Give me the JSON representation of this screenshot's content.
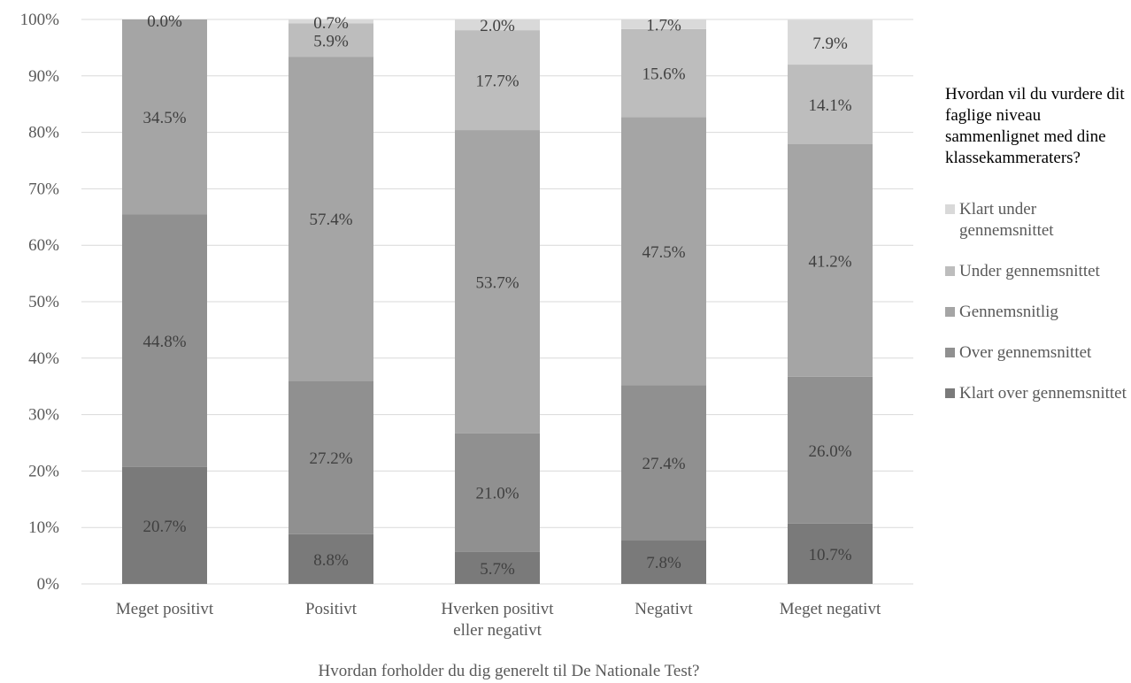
{
  "chart_data": {
    "type": "bar",
    "stacked": true,
    "categories": [
      "Meget positivt",
      "Positivt",
      "Hverken positivt eller negativt",
      "Negativt",
      "Meget negativt"
    ],
    "xlabel": "Hvordan forholder du dig generelt til De Nationale Test?",
    "ylabel": "",
    "ylim": [
      0,
      100
    ],
    "yticks": [
      "0%",
      "10%",
      "20%",
      "30%",
      "40%",
      "50%",
      "60%",
      "70%",
      "80%",
      "90%",
      "100%"
    ],
    "grid": true,
    "legend_title": "Hvordan vil du vurdere dit faglige niveau sammenlignet med dine klassekammeraters?",
    "legend_position": "right",
    "series": [
      {
        "name": "Klart over gennemsnittet",
        "color": "#7a7a7a",
        "values": [
          20.7,
          8.8,
          5.7,
          7.8,
          10.7
        ],
        "labels": [
          "20.7%",
          "8.8%",
          "5.7%",
          "7.8%",
          "10.7%"
        ]
      },
      {
        "name": "Over gennemsnittet",
        "color": "#909090",
        "values": [
          44.8,
          27.2,
          21.0,
          27.4,
          26.0
        ],
        "labels": [
          "44.8%",
          "27.2%",
          "21.0%",
          "27.4%",
          "26.0%"
        ]
      },
      {
        "name": "Gennemsnitlig",
        "color": "#a5a5a5",
        "values": [
          34.5,
          57.4,
          53.7,
          47.5,
          41.2
        ],
        "labels": [
          "34.5%",
          "57.4%",
          "53.7%",
          "47.5%",
          "41.2%"
        ]
      },
      {
        "name": "Under gennemsnittet",
        "color": "#bdbdbd",
        "values": [
          0.0,
          5.9,
          17.7,
          15.6,
          14.1
        ],
        "labels": [
          "0.0%",
          "5.9%",
          "17.7%",
          "15.6%",
          "14.1%"
        ]
      },
      {
        "name": "Klart under gennemsnittet",
        "color": "#d9d9d9",
        "values": [
          0.0,
          0.7,
          2.0,
          1.7,
          7.9
        ],
        "labels": [
          "0.0%",
          "0.7%",
          "2.0%",
          "1.7%",
          "7.9%"
        ]
      }
    ]
  }
}
